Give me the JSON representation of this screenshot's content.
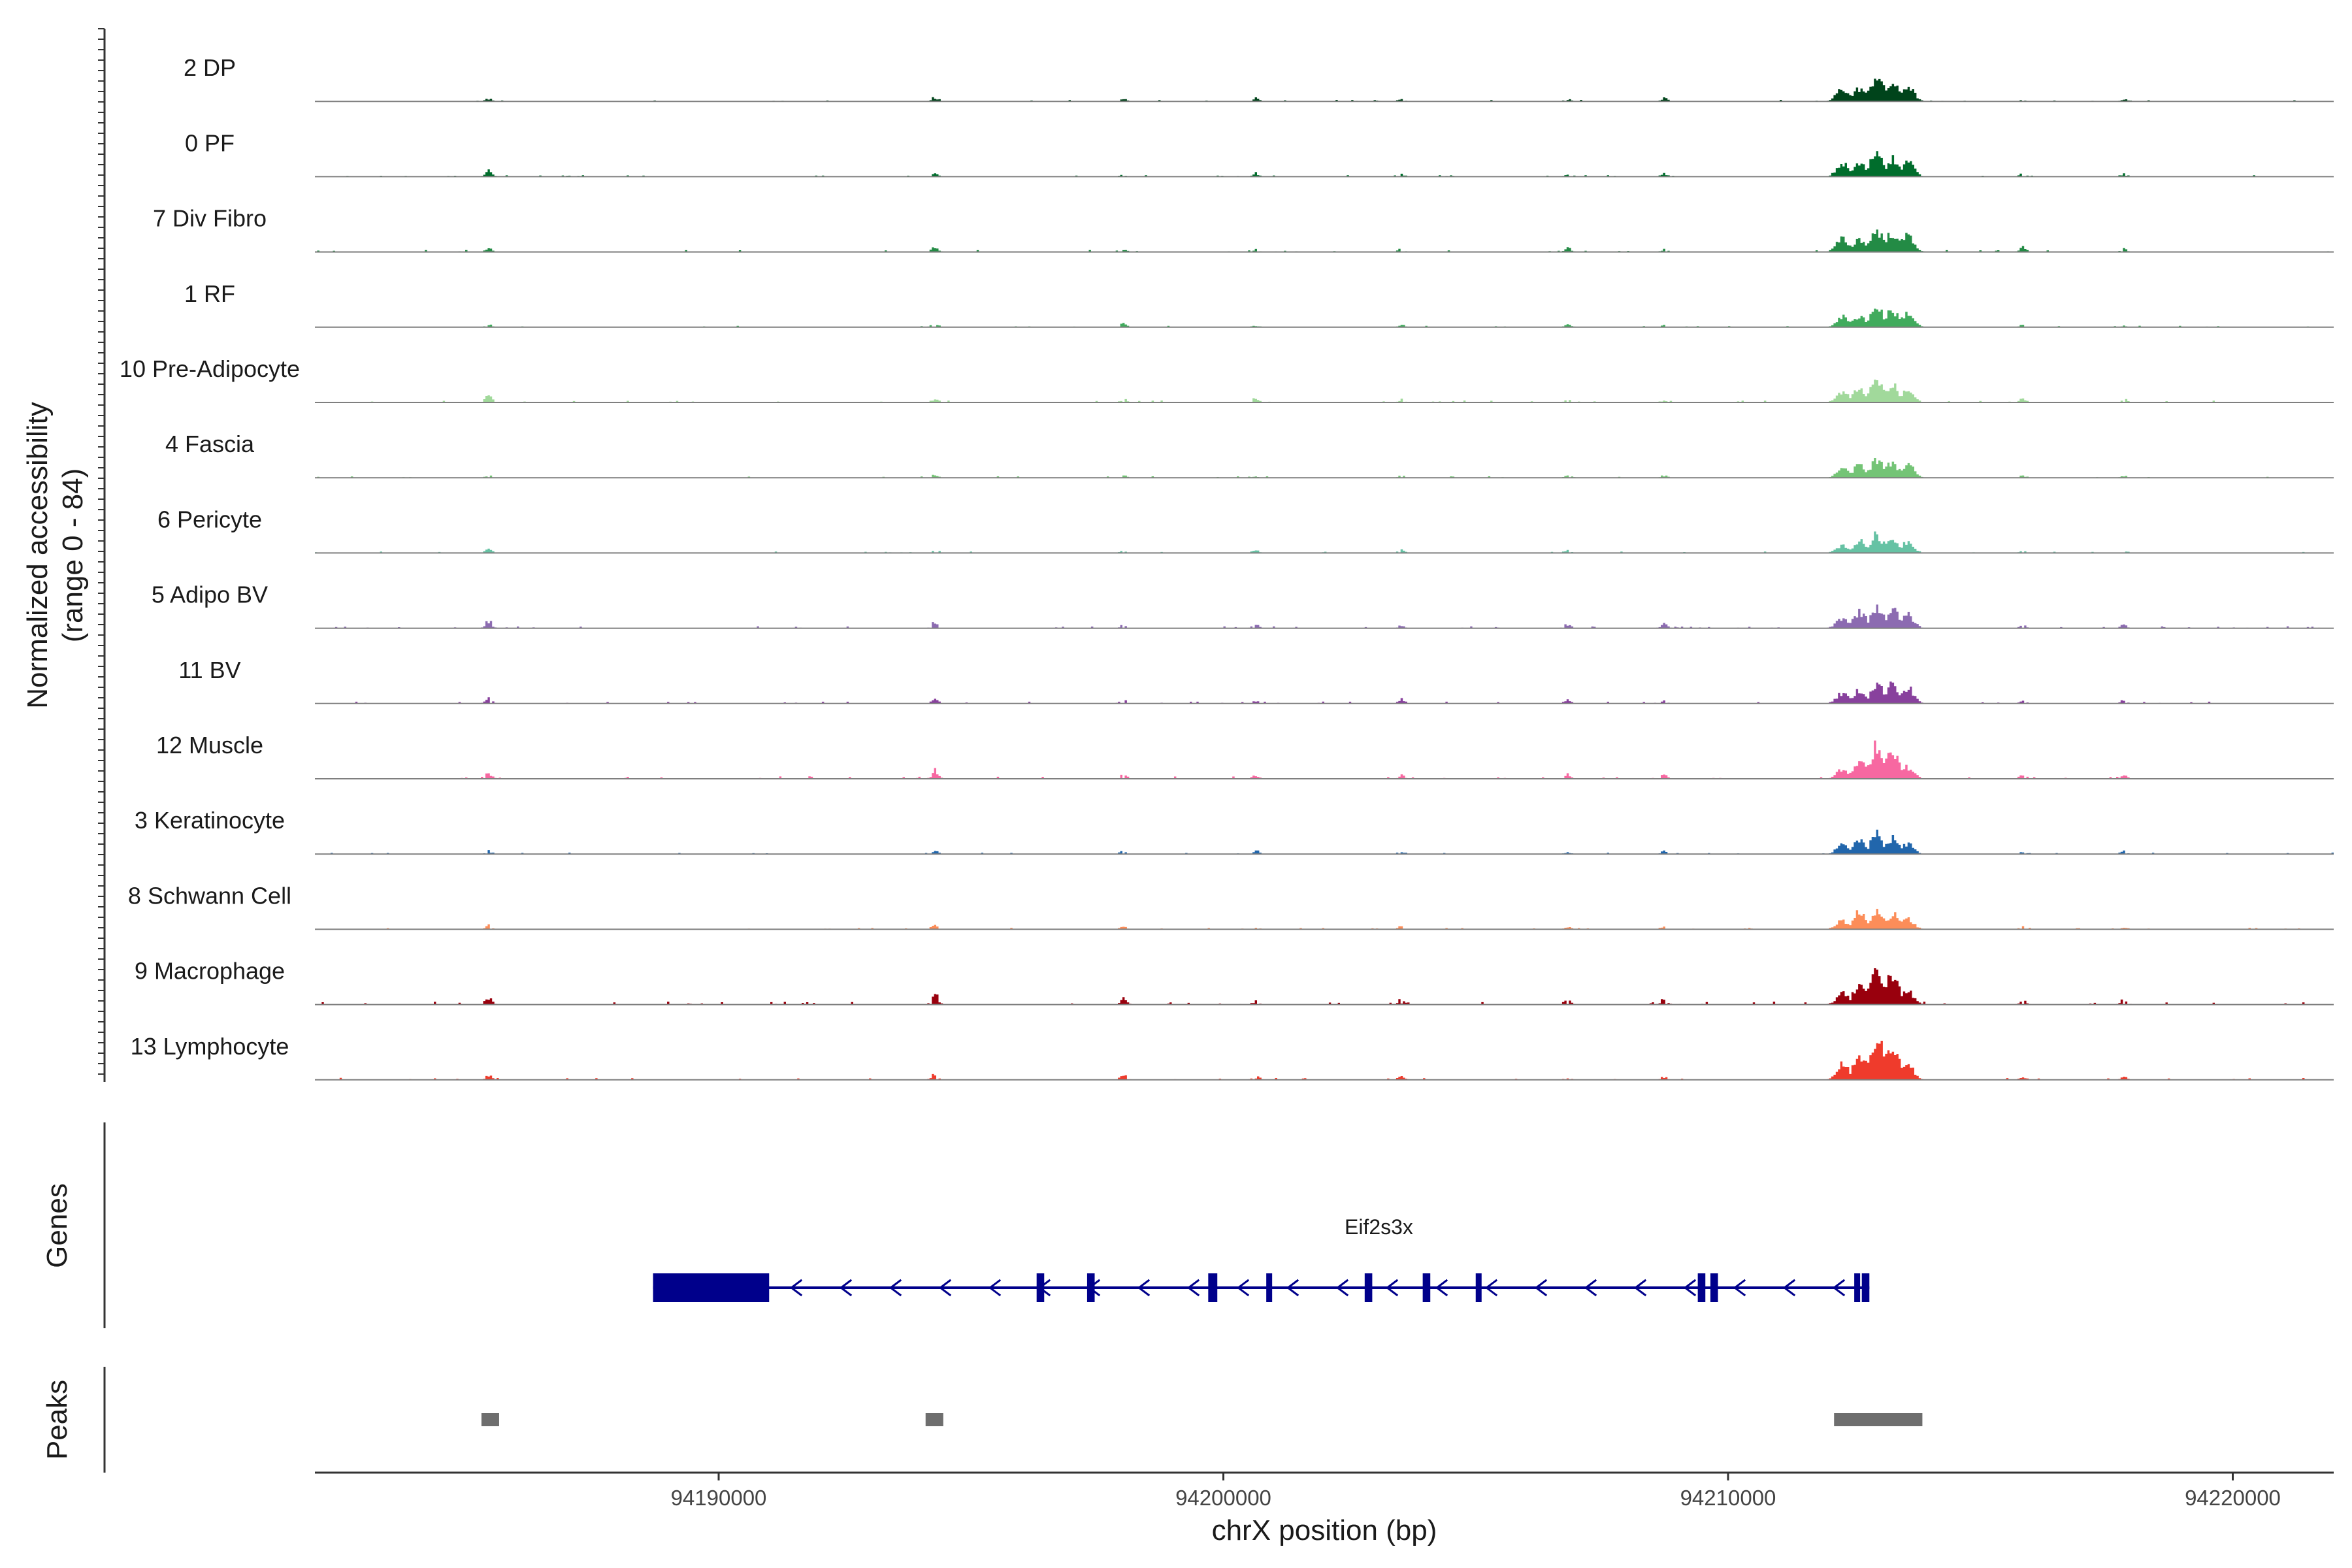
{
  "chart_data": {
    "type": "area",
    "subtype": "genome-coverage-tracks",
    "xlabel": "chrX position (bp)",
    "ylabel": [
      "Normalized accessibility",
      "(range 0 - 84)"
    ],
    "y_range": [
      0,
      84
    ],
    "x_range": [
      94182000,
      94222000
    ],
    "x_ticks": [
      94190000,
      94200000,
      94210000,
      94220000
    ],
    "x_tick_labels": [
      "94190000",
      "94200000",
      "94210000",
      "94220000"
    ],
    "panel_titles": {
      "genes": "Genes",
      "peaks": "Peaks"
    },
    "tracks": [
      {
        "name": "2 DP",
        "color": "#00441b",
        "main": [
          20,
          20,
          40,
          28,
          24
        ],
        "bg": 3
      },
      {
        "name": "0 PF",
        "color": "#006d2c",
        "main": [
          20,
          20,
          40,
          28,
          24
        ],
        "bg": 3
      },
      {
        "name": "7 Div Fibro",
        "color": "#238b45",
        "main": [
          20,
          20,
          34,
          30,
          26
        ],
        "bg": 4
      },
      {
        "name": "1 RF",
        "color": "#41ab5d",
        "main": [
          16,
          18,
          32,
          26,
          22
        ],
        "bg": 3
      },
      {
        "name": "10 Pre-Adipocyte",
        "color": "#a1d99b",
        "main": [
          16,
          22,
          34,
          26,
          18
        ],
        "bg": 4
      },
      {
        "name": "4 Fascia",
        "color": "#74c476",
        "main": [
          14,
          20,
          30,
          24,
          20
        ],
        "bg": 3
      },
      {
        "name": "6 Pericyte",
        "color": "#66c2a4",
        "main": [
          12,
          18,
          28,
          22,
          18
        ],
        "bg": 3
      },
      {
        "name": "5 Adipo BV",
        "color": "#8c6bb1",
        "main": [
          16,
          26,
          34,
          30,
          20
        ],
        "bg": 4
      },
      {
        "name": "11 BV",
        "color": "#88419d",
        "main": [
          16,
          20,
          30,
          34,
          24
        ],
        "bg": 4
      },
      {
        "name": "12 Muscle",
        "color": "#f768a1",
        "main": [
          14,
          26,
          54,
          48,
          18
        ],
        "bg": 5
      },
      {
        "name": "3 Keratinocyte",
        "color": "#2166ac",
        "main": [
          14,
          22,
          30,
          24,
          16
        ],
        "bg": 3
      },
      {
        "name": "8 Schwann Cell",
        "color": "#fc8d59",
        "main": [
          14,
          26,
          30,
          24,
          16
        ],
        "bg": 3
      },
      {
        "name": "9 Macrophage",
        "color": "#99000d",
        "main": [
          18,
          32,
          60,
          48,
          20
        ],
        "bg": 6
      },
      {
        "name": "13 Lymphocyte",
        "color": "#ef3b2c",
        "main": [
          24,
          40,
          66,
          56,
          22
        ],
        "bg": 4
      }
    ],
    "gene": {
      "name": "Eif2s3x",
      "color": "#00008b",
      "strand": "-",
      "start": 94188700,
      "end": 94212800,
      "exons": [
        [
          94188700,
          94191000
        ],
        [
          94196300,
          94196450
        ],
        [
          94197300,
          94197450
        ],
        [
          94199700,
          94199880
        ],
        [
          94200850,
          94200950
        ],
        [
          94202800,
          94202950
        ],
        [
          94203950,
          94204100
        ],
        [
          94205000,
          94205100
        ],
        [
          94209400,
          94209550
        ],
        [
          94209650,
          94209800
        ],
        [
          94212500,
          94212600
        ],
        [
          94212650,
          94212800
        ]
      ]
    },
    "peaks": [
      [
        94185300,
        94185650
      ],
      [
        94194100,
        94194450
      ],
      [
        94212100,
        94213850
      ]
    ]
  }
}
